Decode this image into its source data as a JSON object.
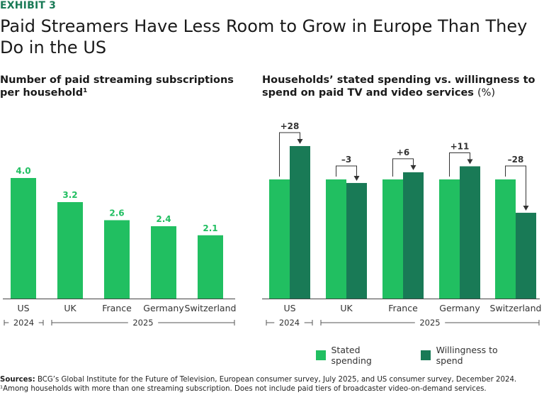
{
  "header": {
    "exhibit": "EXHIBIT 3",
    "title": "Paid Streamers Have Less Room to Grow in Europe Than They Do in the US"
  },
  "left_subtitle_line1": "Number of paid streaming subscriptions",
  "left_subtitle_line2": "per household¹",
  "right_subtitle_line1": "Households’ stated spending vs. willingness to",
  "right_subtitle_line2": "spend on paid TV and video services",
  "right_subtitle_unit": "(%)",
  "year_labels": {
    "y2024": "2024",
    "y2025": "2025"
  },
  "colors": {
    "light_green": "#21bf61",
    "dark_green": "#197a56",
    "axis": "#444444"
  },
  "legend": {
    "stated": "Stated spending",
    "willing": "Willingness to spend"
  },
  "chart_data": [
    {
      "type": "bar",
      "title": "Number of paid streaming subscriptions per household¹",
      "categories": [
        "US",
        "UK",
        "France",
        "Germany",
        "Switzerland"
      ],
      "values": [
        4.0,
        3.2,
        2.6,
        2.4,
        2.1
      ],
      "value_labels": [
        "4.0",
        "3.2",
        "2.6",
        "2.4",
        "2.1"
      ],
      "ylim": [
        0,
        8
      ],
      "grid": false
    },
    {
      "type": "bar",
      "title": "Households’ stated spending vs. willingness to spend on paid TV and video services (%)",
      "categories": [
        "US",
        "UK",
        "France",
        "Germany",
        "Switzerland"
      ],
      "series": [
        {
          "name": "Stated spending",
          "values": [
            100,
            100,
            100,
            100,
            100
          ]
        },
        {
          "name": "Willingness to spend",
          "values": [
            128,
            97,
            106,
            111,
            72
          ]
        }
      ],
      "difference_labels": [
        "+28",
        "–3",
        "+6",
        "+11",
        "–28"
      ],
      "ylim": [
        0,
        150
      ],
      "grid": false
    }
  ],
  "footer": {
    "sources_label": "Sources:",
    "sources_text": " BCG’s Global Institute for the Future of Television, European consumer survey, July 2025, and US consumer survey, December 2024.",
    "note": "¹Among households with more than one streaming subscription. Does not include paid tiers of broadcaster video-on-demand services."
  }
}
